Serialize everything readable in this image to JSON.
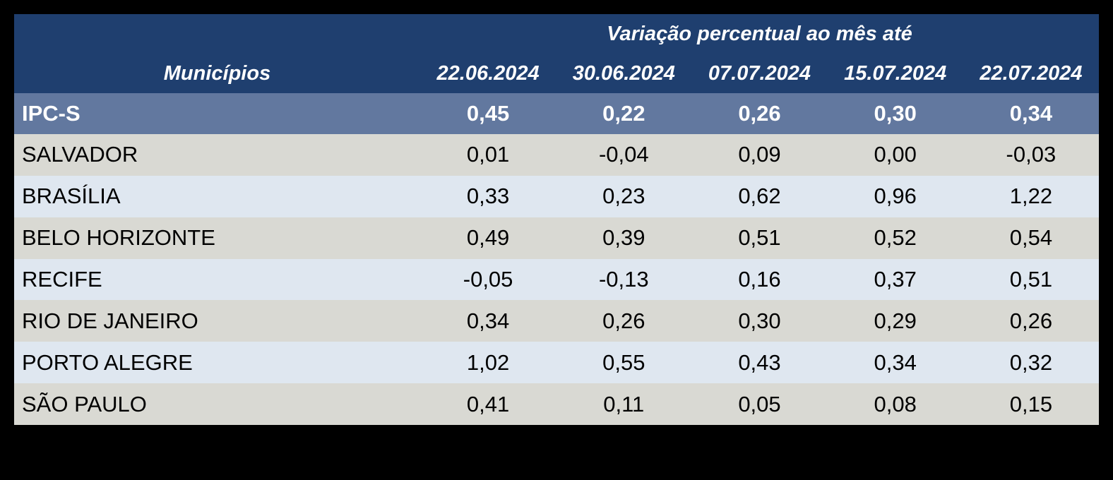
{
  "colors": {
    "page_bg": "#000000",
    "header_bg": "#1F3F6F",
    "summary_row_bg": "#62789F",
    "row_alt_gray": "#D9D9D3",
    "row_alt_blue": "#DFE7F0",
    "header_text": "#FFFFFF",
    "body_text": "#000000"
  },
  "chart_data": {
    "type": "table",
    "title": "Variação percentual ao mês até",
    "row_header_label": "Municípios",
    "columns": [
      "22.06.2024",
      "30.06.2024",
      "07.07.2024",
      "15.07.2024",
      "22.07.2024"
    ],
    "rows": [
      {
        "label": "IPC-S",
        "emphasis": true,
        "values": [
          0.45,
          0.22,
          0.26,
          0.3,
          0.34
        ],
        "display": [
          "0,45",
          "0,22",
          "0,26",
          "0,30",
          "0,34"
        ]
      },
      {
        "label": "SALVADOR",
        "emphasis": false,
        "values": [
          0.01,
          -0.04,
          0.09,
          0.0,
          -0.03
        ],
        "display": [
          "0,01",
          "-0,04",
          "0,09",
          "0,00",
          "-0,03"
        ]
      },
      {
        "label": "BRASÍLIA",
        "emphasis": false,
        "values": [
          0.33,
          0.23,
          0.62,
          0.96,
          1.22
        ],
        "display": [
          "0,33",
          "0,23",
          "0,62",
          "0,96",
          "1,22"
        ]
      },
      {
        "label": "BELO HORIZONTE",
        "emphasis": false,
        "values": [
          0.49,
          0.39,
          0.51,
          0.52,
          0.54
        ],
        "display": [
          "0,49",
          "0,39",
          "0,51",
          "0,52",
          "0,54"
        ]
      },
      {
        "label": "RECIFE",
        "emphasis": false,
        "values": [
          -0.05,
          -0.13,
          0.16,
          0.37,
          0.51
        ],
        "display": [
          "-0,05",
          "-0,13",
          "0,16",
          "0,37",
          "0,51"
        ]
      },
      {
        "label": "RIO DE JANEIRO",
        "emphasis": false,
        "values": [
          0.34,
          0.26,
          0.3,
          0.29,
          0.26
        ],
        "display": [
          "0,34",
          "0,26",
          "0,30",
          "0,29",
          "0,26"
        ]
      },
      {
        "label": "PORTO ALEGRE",
        "emphasis": false,
        "values": [
          1.02,
          0.55,
          0.43,
          0.34,
          0.32
        ],
        "display": [
          "1,02",
          "0,55",
          "0,43",
          "0,34",
          "0,32"
        ]
      },
      {
        "label": "SÃO PAULO",
        "emphasis": false,
        "values": [
          0.41,
          0.11,
          0.05,
          0.08,
          0.15
        ],
        "display": [
          "0,41",
          "0,11",
          "0,05",
          "0,08",
          "0,15"
        ]
      }
    ]
  }
}
